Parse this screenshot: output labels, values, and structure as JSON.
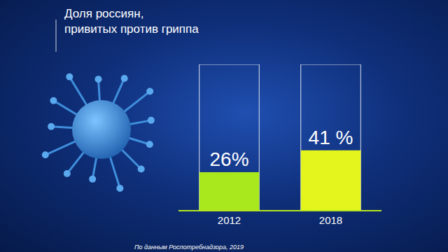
{
  "chart_data": {
    "type": "bar",
    "title": "Доля россиян,\nпривитых против гриппа",
    "categories": [
      "2012",
      "2018"
    ],
    "values": [
      26,
      41
    ],
    "value_labels": [
      "26%",
      "41 %"
    ],
    "colors": [
      "#a8e81c",
      "#e4f51e"
    ],
    "ylim": [
      0,
      100
    ],
    "data_labels": true,
    "tick_labels": "x",
    "grid": false,
    "source": "По данным Роспотребнадзора, 2019"
  }
}
